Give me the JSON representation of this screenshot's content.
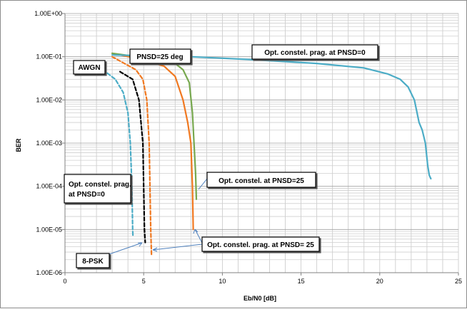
{
  "chart_data": {
    "type": "line",
    "title": "",
    "xlabel": "Eb/N0 [dB]",
    "ylabel": "BER",
    "xlim": [
      0,
      25
    ],
    "ylim": [
      1e-06,
      1
    ],
    "yscale": "log",
    "grid": true,
    "x_ticks": [
      0,
      5,
      10,
      15,
      20,
      25
    ],
    "x_tick_labels": [
      "0",
      "5",
      "10",
      "15",
      "20",
      "25"
    ],
    "y_ticks": [
      1e-06,
      1e-05,
      0.0001,
      0.001,
      0.01,
      0.1,
      1
    ],
    "y_tick_labels": [
      "1.00E-06",
      "1.00E-05",
      "1.00E-04",
      "1.00E-03",
      "1.00E-02",
      "1.00E-01",
      "1.00E+00"
    ],
    "series": [
      {
        "color": "#4bacc6",
        "dash": true,
        "points": [
          [
            2.4,
            0.05
          ],
          [
            3.2,
            0.03
          ],
          [
            3.7,
            0.015
          ],
          [
            4.0,
            0.005
          ],
          [
            4.15,
            0.001
          ],
          [
            4.25,
            0.0001
          ],
          [
            4.3,
            1e-05
          ],
          [
            4.32,
            7e-06
          ]
        ]
      },
      {
        "color": "#000000",
        "dash": true,
        "points": [
          [
            3.5,
            0.045
          ],
          [
            4.3,
            0.03
          ],
          [
            4.7,
            0.01
          ],
          [
            4.95,
            0.001
          ],
          [
            5.0,
            0.0001
          ],
          [
            5.05,
            1e-05
          ],
          [
            5.1,
            5e-06
          ]
        ]
      },
      {
        "color": "#f07820",
        "dash": true,
        "points": [
          [
            3.0,
            0.1
          ],
          [
            4.5,
            0.05
          ],
          [
            4.95,
            0.03
          ],
          [
            5.2,
            0.01
          ],
          [
            5.35,
            0.001
          ],
          [
            5.4,
            0.0001
          ],
          [
            5.45,
            1e-05
          ],
          [
            5.5,
            2.5e-06
          ]
        ]
      },
      {
        "color": "#f07820",
        "dash": false,
        "points": [
          [
            3.0,
            0.12
          ],
          [
            5.0,
            0.085
          ],
          [
            6.3,
            0.06
          ],
          [
            7.0,
            0.035
          ],
          [
            7.5,
            0.01
          ],
          [
            7.8,
            0.003
          ],
          [
            8.0,
            0.001
          ],
          [
            8.1,
            0.0001
          ],
          [
            8.15,
            1e-05
          ]
        ]
      },
      {
        "color": "#77a84f",
        "dash": false,
        "points": [
          [
            3.0,
            0.12
          ],
          [
            5.5,
            0.09
          ],
          [
            7.0,
            0.07
          ],
          [
            7.5,
            0.05
          ],
          [
            7.9,
            0.025
          ],
          [
            8.1,
            0.005
          ],
          [
            8.2,
            0.001
          ],
          [
            8.3,
            0.0002
          ],
          [
            8.35,
            5e-05
          ]
        ]
      },
      {
        "color": "#4bacc6",
        "dash": false,
        "points": [
          [
            3.0,
            0.11
          ],
          [
            8.0,
            0.1
          ],
          [
            12.0,
            0.085
          ],
          [
            16.0,
            0.07
          ],
          [
            19.0,
            0.055
          ],
          [
            20.5,
            0.04
          ],
          [
            21.3,
            0.03
          ],
          [
            21.8,
            0.02
          ],
          [
            22.2,
            0.01
          ],
          [
            22.5,
            0.003
          ],
          [
            22.7,
            0.002
          ],
          [
            22.9,
            0.001
          ],
          [
            23.05,
            0.0003
          ],
          [
            23.15,
            0.00018
          ],
          [
            23.25,
            0.00015
          ]
        ]
      }
    ],
    "annotations": [
      {
        "id": "awgn",
        "text": "AWGN"
      },
      {
        "id": "pnsd25deg",
        "text": "PNSD=25 deg"
      },
      {
        "id": "opt-prag-0-top",
        "text": "Opt. constel. prag. at PNSD=0"
      },
      {
        "id": "opt-constel-25",
        "text": "Opt. constel. at PNSD=25"
      },
      {
        "id": "opt-prag-0-left",
        "lines": [
          "Opt. constel. prag.",
          "at PNSD=0"
        ]
      },
      {
        "id": "opt-prag-25",
        "text": "Opt. constel. prag. at PNSD= 25"
      },
      {
        "id": "psk8",
        "text": "8-PSK"
      }
    ]
  }
}
